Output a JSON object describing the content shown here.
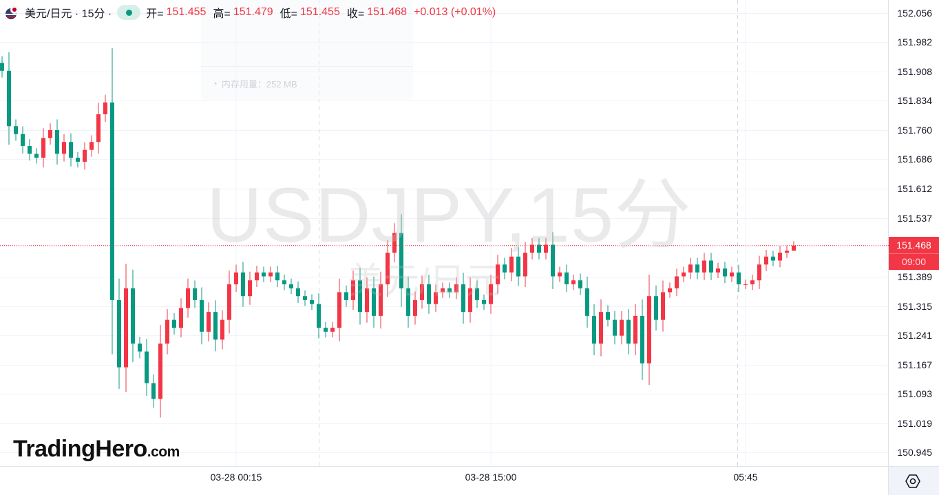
{
  "legend": {
    "symbol": "美元/日元 · 15分 ·",
    "open_label": "开=",
    "open": "151.455",
    "high_label": "高=",
    "high": "151.479",
    "low_label": "低=",
    "low": "151.455",
    "close_label": "收=",
    "close": "151.468",
    "change": "+0.013 (+0.01%)"
  },
  "memory_overlay": {
    "text": "内存用量：252 MB"
  },
  "watermark": {
    "line1": "USDJPY,15分",
    "line2": "美元/日元"
  },
  "logo": {
    "name": "TradingHero",
    "suffix": ".com"
  },
  "current_price": {
    "price": "151.468",
    "countdown": "09:00"
  },
  "colors": {
    "up": "#f23645",
    "down": "#089981",
    "grid": "#f0f3fa"
  },
  "chart_data": {
    "type": "candlestick",
    "title": "",
    "ylim": [
      150.91,
      152.08
    ],
    "y_ticks": [
      "152.056",
      "151.982",
      "151.908",
      "151.834",
      "151.760",
      "151.686",
      "151.612",
      "151.537",
      "151.468",
      "151.389",
      "151.315",
      "151.241",
      "151.167",
      "151.093",
      "151.019",
      "150.945"
    ],
    "x_ticks": [
      {
        "label": "03-28 00:15",
        "index": 34
      },
      {
        "label": "03-28 15:00",
        "index": 71
      },
      {
        "label": "05:45",
        "index": 108
      }
    ],
    "grid": true,
    "close": [
      151.91,
      151.77,
      151.75,
      151.72,
      151.7,
      151.69,
      151.74,
      151.76,
      151.7,
      151.73,
      151.69,
      151.68,
      151.71,
      151.73,
      151.8,
      151.83,
      151.33,
      151.16,
      151.36,
      151.22,
      151.2,
      151.12,
      151.08,
      151.22,
      151.28,
      151.26,
      151.31,
      151.36,
      151.33,
      151.25,
      151.3,
      151.23,
      151.28,
      151.37,
      151.4,
      151.34,
      151.38,
      151.4,
      151.39,
      151.4,
      151.38,
      151.37,
      151.36,
      151.34,
      151.33,
      151.32,
      151.26,
      151.25,
      151.26,
      151.35,
      151.33,
      151.38,
      151.3,
      151.36,
      151.29,
      151.37,
      151.45,
      151.5,
      151.36,
      151.29,
      151.33,
      151.37,
      151.32,
      151.35,
      151.36,
      151.35,
      151.37,
      151.3,
      151.36,
      151.33,
      151.32,
      151.37,
      151.42,
      151.4,
      151.44,
      151.39,
      151.45,
      151.47,
      151.45,
      151.47,
      151.39,
      151.4,
      151.37,
      151.38,
      151.36,
      151.29,
      151.22,
      151.3,
      151.28,
      151.24,
      151.28,
      151.22,
      151.29,
      151.17,
      151.34,
      151.28,
      151.35,
      151.36,
      151.39,
      151.4,
      151.42,
      151.4,
      151.43,
      151.4,
      151.41,
      151.39,
      151.4,
      151.37,
      151.37,
      151.38,
      151.42,
      151.44,
      151.43,
      151.45,
      151.455,
      151.468
    ],
    "first_open": 151.93,
    "last_high": 151.479,
    "last_low": 151.455
  }
}
